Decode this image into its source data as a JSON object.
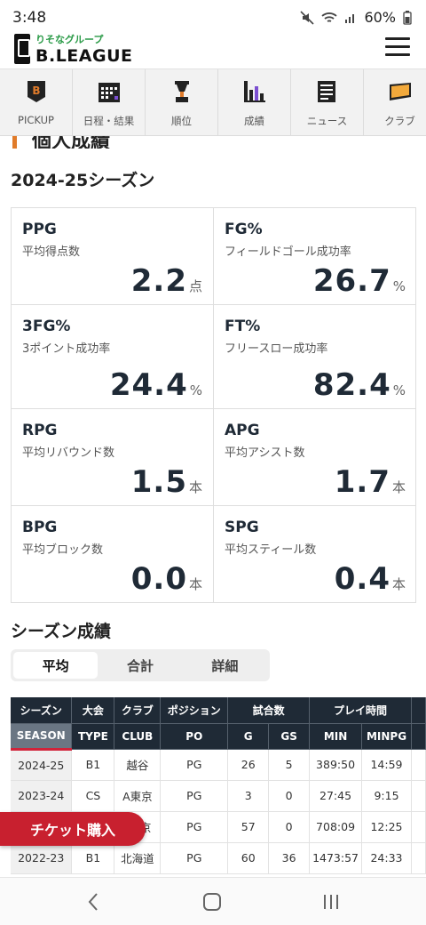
{
  "status": {
    "time": "3:48",
    "battery": "60%"
  },
  "header": {
    "logo_sub": "りそなグループ",
    "logo_main": "B.LEAGUE"
  },
  "nav": [
    {
      "label": "PICKUP",
      "icon": "pickup-icon"
    },
    {
      "label": "日程・結果",
      "icon": "calendar-icon"
    },
    {
      "label": "順位",
      "icon": "trophy-icon"
    },
    {
      "label": "成績",
      "icon": "stats-icon"
    },
    {
      "label": "ニュース",
      "icon": "news-icon"
    },
    {
      "label": "クラブ",
      "icon": "flag-icon"
    }
  ],
  "section_fragment": "個人成績",
  "season_title": "2024-25シーズン",
  "stats": [
    {
      "abbr": "PPG",
      "desc": "平均得点数",
      "value": "2.2",
      "unit": "点"
    },
    {
      "abbr": "FG%",
      "desc": "フィールドゴール成功率",
      "value": "26.7",
      "unit": "%"
    },
    {
      "abbr": "3FG%",
      "desc": "3ポイント成功率",
      "value": "24.4",
      "unit": "%"
    },
    {
      "abbr": "FT%",
      "desc": "フリースロー成功率",
      "value": "82.4",
      "unit": "%"
    },
    {
      "abbr": "RPG",
      "desc": "平均リバウンド数",
      "value": "1.5",
      "unit": "本"
    },
    {
      "abbr": "APG",
      "desc": "平均アシスト数",
      "value": "1.7",
      "unit": "本"
    },
    {
      "abbr": "BPG",
      "desc": "平均ブロック数",
      "value": "0.0",
      "unit": "本"
    },
    {
      "abbr": "SPG",
      "desc": "平均スティール数",
      "value": "0.4",
      "unit": "本"
    }
  ],
  "season_record_title": "シーズン成績",
  "tabs": [
    {
      "label": "平均",
      "active": true
    },
    {
      "label": "合計",
      "active": false
    },
    {
      "label": "詳細",
      "active": false
    }
  ],
  "table": {
    "group_headers": [
      "シーズン",
      "大会",
      "クラブ",
      "ポジション",
      "試合数",
      "プレイ時間"
    ],
    "sub_headers": [
      "SEASON",
      "TYPE",
      "CLUB",
      "PO",
      "G",
      "GS",
      "MIN",
      "MINPG"
    ],
    "rows": [
      [
        "2024-25",
        "B1",
        "越谷",
        "PG",
        "26",
        "5",
        "389:50",
        "14:59"
      ],
      [
        "2023-24",
        "CS",
        "A東京",
        "PG",
        "3",
        "0",
        "27:45",
        "9:15"
      ],
      [
        "",
        "",
        "京",
        "PG",
        "57",
        "0",
        "708:09",
        "12:25"
      ],
      [
        "2022-23",
        "B1",
        "北海道",
        "PG",
        "60",
        "36",
        "1473:57",
        "24:33"
      ]
    ]
  },
  "ticket_label": "チケット購入",
  "colors": {
    "accent_red": "#c8202f",
    "header_dark": "#1f2a36",
    "orange": "#e07b2a"
  }
}
